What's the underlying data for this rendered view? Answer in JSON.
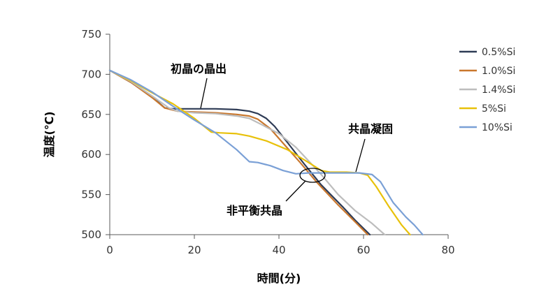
{
  "chart_data": {
    "type": "line",
    "xlabel": "時間(分)",
    "ylabel": "温度(℃)",
    "xlim": [
      0,
      80
    ],
    "ylim": [
      500,
      750
    ],
    "x_ticks": [
      0,
      20,
      40,
      60,
      80
    ],
    "y_ticks": [
      500,
      550,
      600,
      650,
      700,
      750
    ],
    "grid": false,
    "legend_position": "right",
    "series": [
      {
        "name": "0.5%Si",
        "color": "#2e3b55",
        "points": [
          [
            0,
            705
          ],
          [
            5,
            690
          ],
          [
            10,
            672
          ],
          [
            13,
            658
          ],
          [
            15,
            657
          ],
          [
            20,
            657
          ],
          [
            25,
            657
          ],
          [
            30,
            656
          ],
          [
            33,
            654
          ],
          [
            35,
            651
          ],
          [
            37,
            645
          ],
          [
            39,
            635
          ],
          [
            42,
            615
          ],
          [
            46,
            588
          ],
          [
            50,
            562
          ],
          [
            55,
            535
          ],
          [
            58,
            518
          ],
          [
            61.5,
            500
          ]
        ]
      },
      {
        "name": "1.0%Si",
        "color": "#c9772d",
        "points": [
          [
            0,
            705
          ],
          [
            5,
            690
          ],
          [
            10,
            671
          ],
          [
            13,
            658
          ],
          [
            16,
            654
          ],
          [
            20,
            653
          ],
          [
            25,
            652
          ],
          [
            30,
            650
          ],
          [
            33,
            648
          ],
          [
            35,
            644
          ],
          [
            38,
            632
          ],
          [
            41,
            614
          ],
          [
            45,
            590
          ],
          [
            49,
            565
          ],
          [
            54,
            537
          ],
          [
            58,
            516
          ],
          [
            61,
            500
          ]
        ]
      },
      {
        "name": "1.4%Si",
        "color": "#bdbdbd",
        "points": [
          [
            0,
            705
          ],
          [
            5,
            691
          ],
          [
            10,
            673
          ],
          [
            14,
            658
          ],
          [
            16,
            654
          ],
          [
            20,
            652
          ],
          [
            25,
            651
          ],
          [
            30,
            648
          ],
          [
            33,
            645
          ],
          [
            36,
            637
          ],
          [
            40,
            626
          ],
          [
            44,
            609
          ],
          [
            47,
            592
          ],
          [
            50,
            575
          ],
          [
            54,
            550
          ],
          [
            58,
            530
          ],
          [
            62,
            514
          ],
          [
            65,
            500
          ]
        ]
      },
      {
        "name": "5%Si",
        "color": "#e8c10a",
        "points": [
          [
            0,
            705
          ],
          [
            5,
            692
          ],
          [
            10,
            677
          ],
          [
            15,
            663
          ],
          [
            20,
            645
          ],
          [
            24,
            628
          ],
          [
            26,
            627
          ],
          [
            30,
            626
          ],
          [
            33,
            623
          ],
          [
            37,
            617
          ],
          [
            42,
            606
          ],
          [
            47,
            590
          ],
          [
            50,
            580
          ],
          [
            52,
            578
          ],
          [
            56,
            578
          ],
          [
            59,
            577
          ],
          [
            61,
            574
          ],
          [
            63,
            560
          ],
          [
            66,
            535
          ],
          [
            69,
            512
          ],
          [
            71,
            500
          ]
        ]
      },
      {
        "name": "10%Si",
        "color": "#7aa0d6",
        "points": [
          [
            0,
            705
          ],
          [
            5,
            693
          ],
          [
            10,
            678
          ],
          [
            15,
            660
          ],
          [
            20,
            643
          ],
          [
            25,
            627
          ],
          [
            30,
            606
          ],
          [
            33,
            591
          ],
          [
            35,
            590
          ],
          [
            38,
            586
          ],
          [
            41,
            580
          ],
          [
            44,
            576
          ],
          [
            47,
            577
          ],
          [
            50,
            577
          ],
          [
            55,
            577
          ],
          [
            59,
            577
          ],
          [
            62,
            575
          ],
          [
            64,
            566
          ],
          [
            67,
            540
          ],
          [
            70,
            522
          ],
          [
            72,
            512
          ],
          [
            74,
            500
          ]
        ]
      }
    ],
    "annotations": [
      {
        "text": "初晶の晶出"
      },
      {
        "text": "共晶凝固"
      },
      {
        "text": "非平衡共晶"
      }
    ]
  }
}
